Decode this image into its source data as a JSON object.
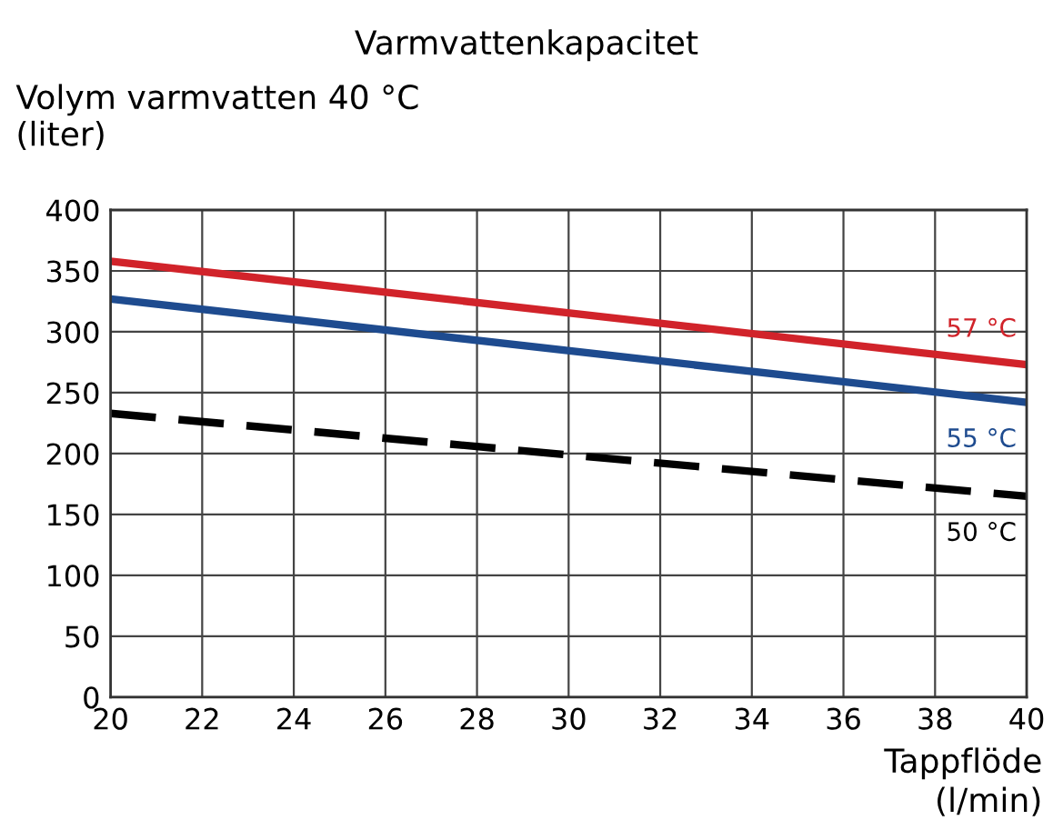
{
  "chart_data": {
    "type": "line",
    "title": "Varmvattenkapacitet",
    "ylabel": "Volym varmvatten 40 °C\n(liter)",
    "xlabel": "Tappflöde\n(l/min)",
    "x": [
      20,
      40
    ],
    "series": [
      {
        "name": "57 °C",
        "color": "#d1232a",
        "values": [
          358,
          273
        ],
        "line_style": "solid"
      },
      {
        "name": "55 °C",
        "color": "#1e4b8f",
        "values": [
          327,
          242
        ],
        "line_style": "solid"
      },
      {
        "name": "50 °C",
        "color": "#000000",
        "values": [
          233,
          165
        ],
        "line_style": "dashed"
      }
    ],
    "xlim": [
      20,
      40
    ],
    "xticks": [
      20,
      22,
      24,
      26,
      28,
      30,
      32,
      34,
      36,
      38,
      40
    ],
    "ylim": [
      0,
      400
    ],
    "yticks": [
      0,
      50,
      100,
      150,
      200,
      250,
      300,
      350,
      400
    ],
    "grid": true,
    "legend": false
  }
}
